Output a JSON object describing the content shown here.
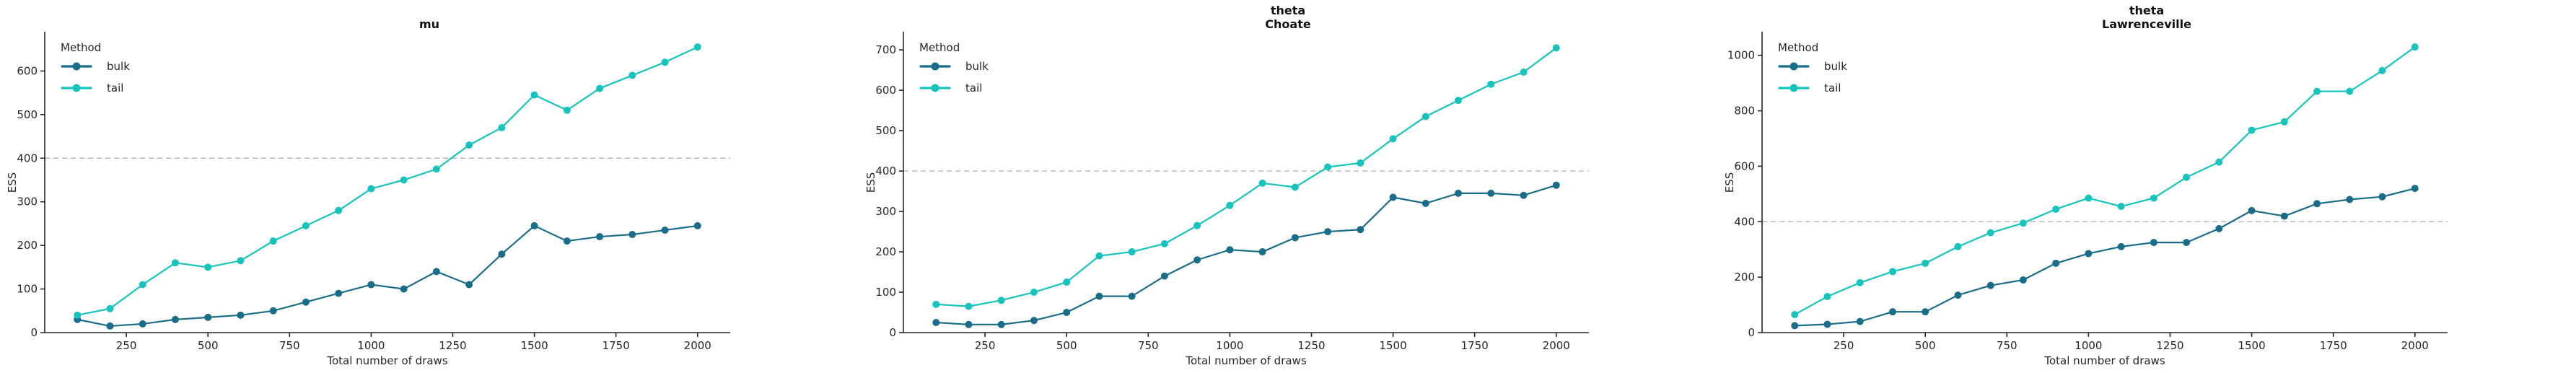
{
  "figure": {
    "background": "#ffffff",
    "text_color": "#262626",
    "spine_color": "#262626",
    "reference_line_color": "#b3b3b3",
    "series_colors": {
      "bulk": "#1a6d88",
      "tail": "#16c3bd"
    }
  },
  "chart_data": [
    {
      "type": "line",
      "title_lines": [
        "mu"
      ],
      "xlabel": "Total number of draws",
      "ylabel": "ESS",
      "legend_title": "Method",
      "legend_position": "upper left",
      "grid": false,
      "reference_line_y": 400,
      "xlim": [
        0,
        2100
      ],
      "ylim": [
        0,
        690
      ],
      "xticks": [
        250,
        500,
        750,
        1000,
        1250,
        1500,
        1750,
        2000
      ],
      "yticks": [
        0,
        100,
        200,
        300,
        400,
        500,
        600
      ],
      "x": [
        100,
        200,
        300,
        400,
        500,
        600,
        700,
        800,
        900,
        1000,
        1100,
        1200,
        1300,
        1400,
        1500,
        1600,
        1700,
        1800,
        1900,
        2000
      ],
      "series": [
        {
          "name": "bulk",
          "color": "#1a6d88",
          "values": [
            30,
            15,
            20,
            30,
            35,
            40,
            50,
            70,
            90,
            110,
            100,
            140,
            110,
            180,
            245,
            210,
            220,
            225,
            235,
            245
          ]
        },
        {
          "name": "tail",
          "color": "#16c3bd",
          "values": [
            40,
            55,
            110,
            160,
            150,
            165,
            210,
            245,
            280,
            330,
            350,
            375,
            430,
            470,
            545,
            510,
            560,
            590,
            620,
            655
          ]
        }
      ]
    },
    {
      "type": "line",
      "title_lines": [
        "theta",
        "Choate"
      ],
      "xlabel": "Total number of draws",
      "ylabel": "ESS",
      "legend_title": "Method",
      "legend_position": "upper left",
      "grid": false,
      "reference_line_y": 400,
      "xlim": [
        0,
        2100
      ],
      "ylim": [
        0,
        745
      ],
      "xticks": [
        250,
        500,
        750,
        1000,
        1250,
        1500,
        1750,
        2000
      ],
      "yticks": [
        0,
        100,
        200,
        300,
        400,
        500,
        600,
        700
      ],
      "x": [
        100,
        200,
        300,
        400,
        500,
        600,
        700,
        800,
        900,
        1000,
        1100,
        1200,
        1300,
        1400,
        1500,
        1600,
        1700,
        1800,
        1900,
        2000
      ],
      "series": [
        {
          "name": "bulk",
          "color": "#1a6d88",
          "values": [
            25,
            20,
            20,
            30,
            50,
            90,
            90,
            140,
            180,
            205,
            200,
            235,
            250,
            255,
            335,
            320,
            345,
            345,
            340,
            365
          ]
        },
        {
          "name": "tail",
          "color": "#16c3bd",
          "values": [
            70,
            65,
            80,
            100,
            125,
            190,
            200,
            220,
            265,
            315,
            370,
            360,
            410,
            420,
            480,
            535,
            575,
            615,
            645,
            705
          ]
        }
      ]
    },
    {
      "type": "line",
      "title_lines": [
        "theta",
        "Lawrenceville"
      ],
      "xlabel": "Total number of draws",
      "ylabel": "ESS",
      "legend_title": "Method",
      "legend_position": "upper left",
      "grid": false,
      "reference_line_y": 400,
      "xlim": [
        0,
        2100
      ],
      "ylim": [
        0,
        1085
      ],
      "xticks": [
        250,
        500,
        750,
        1000,
        1250,
        1500,
        1750,
        2000
      ],
      "yticks": [
        0,
        200,
        400,
        600,
        800,
        1000
      ],
      "x": [
        100,
        200,
        300,
        400,
        500,
        600,
        700,
        800,
        900,
        1000,
        1100,
        1200,
        1300,
        1400,
        1500,
        1600,
        1700,
        1800,
        1900,
        2000
      ],
      "series": [
        {
          "name": "bulk",
          "color": "#1a6d88",
          "values": [
            25,
            30,
            40,
            75,
            75,
            135,
            170,
            190,
            250,
            285,
            310,
            325,
            325,
            375,
            440,
            420,
            465,
            480,
            490,
            520
          ]
        },
        {
          "name": "tail",
          "color": "#16c3bd",
          "values": [
            65,
            130,
            180,
            220,
            250,
            310,
            360,
            395,
            445,
            485,
            455,
            485,
            560,
            615,
            730,
            760,
            870,
            870,
            945,
            1030
          ]
        }
      ]
    }
  ]
}
